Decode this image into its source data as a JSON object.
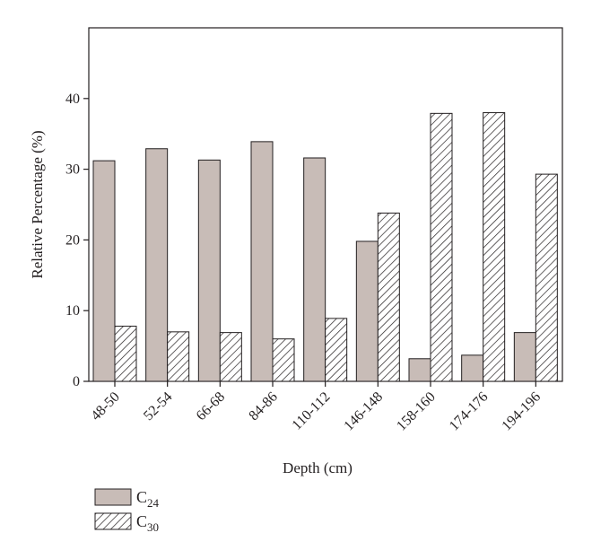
{
  "chart_data": {
    "type": "bar",
    "title": "",
    "xlabel": "Depth (cm)",
    "ylabel": "Relative Percentage (%)",
    "ylim": [
      0,
      50
    ],
    "yticks": [
      0,
      10,
      20,
      30,
      40
    ],
    "grid": false,
    "legend_position": "bottom-left",
    "categories": [
      "48-50",
      "52-54",
      "66-68",
      "84-86",
      "110-112",
      "146-148",
      "158-160",
      "174-176",
      "194-196"
    ],
    "series": [
      {
        "name": "C24",
        "label_main": "C",
        "label_sub": "24",
        "fill": "solid",
        "color": "#c8bcb7",
        "values": [
          31.2,
          32.9,
          31.3,
          33.9,
          31.6,
          19.8,
          3.2,
          3.7,
          6.9
        ]
      },
      {
        "name": "C30",
        "label_main": "C",
        "label_sub": "30",
        "fill": "hatched",
        "color": "#231f20",
        "values": [
          7.8,
          7.0,
          6.9,
          6.0,
          8.9,
          23.8,
          37.9,
          38.0,
          29.3
        ]
      }
    ]
  }
}
